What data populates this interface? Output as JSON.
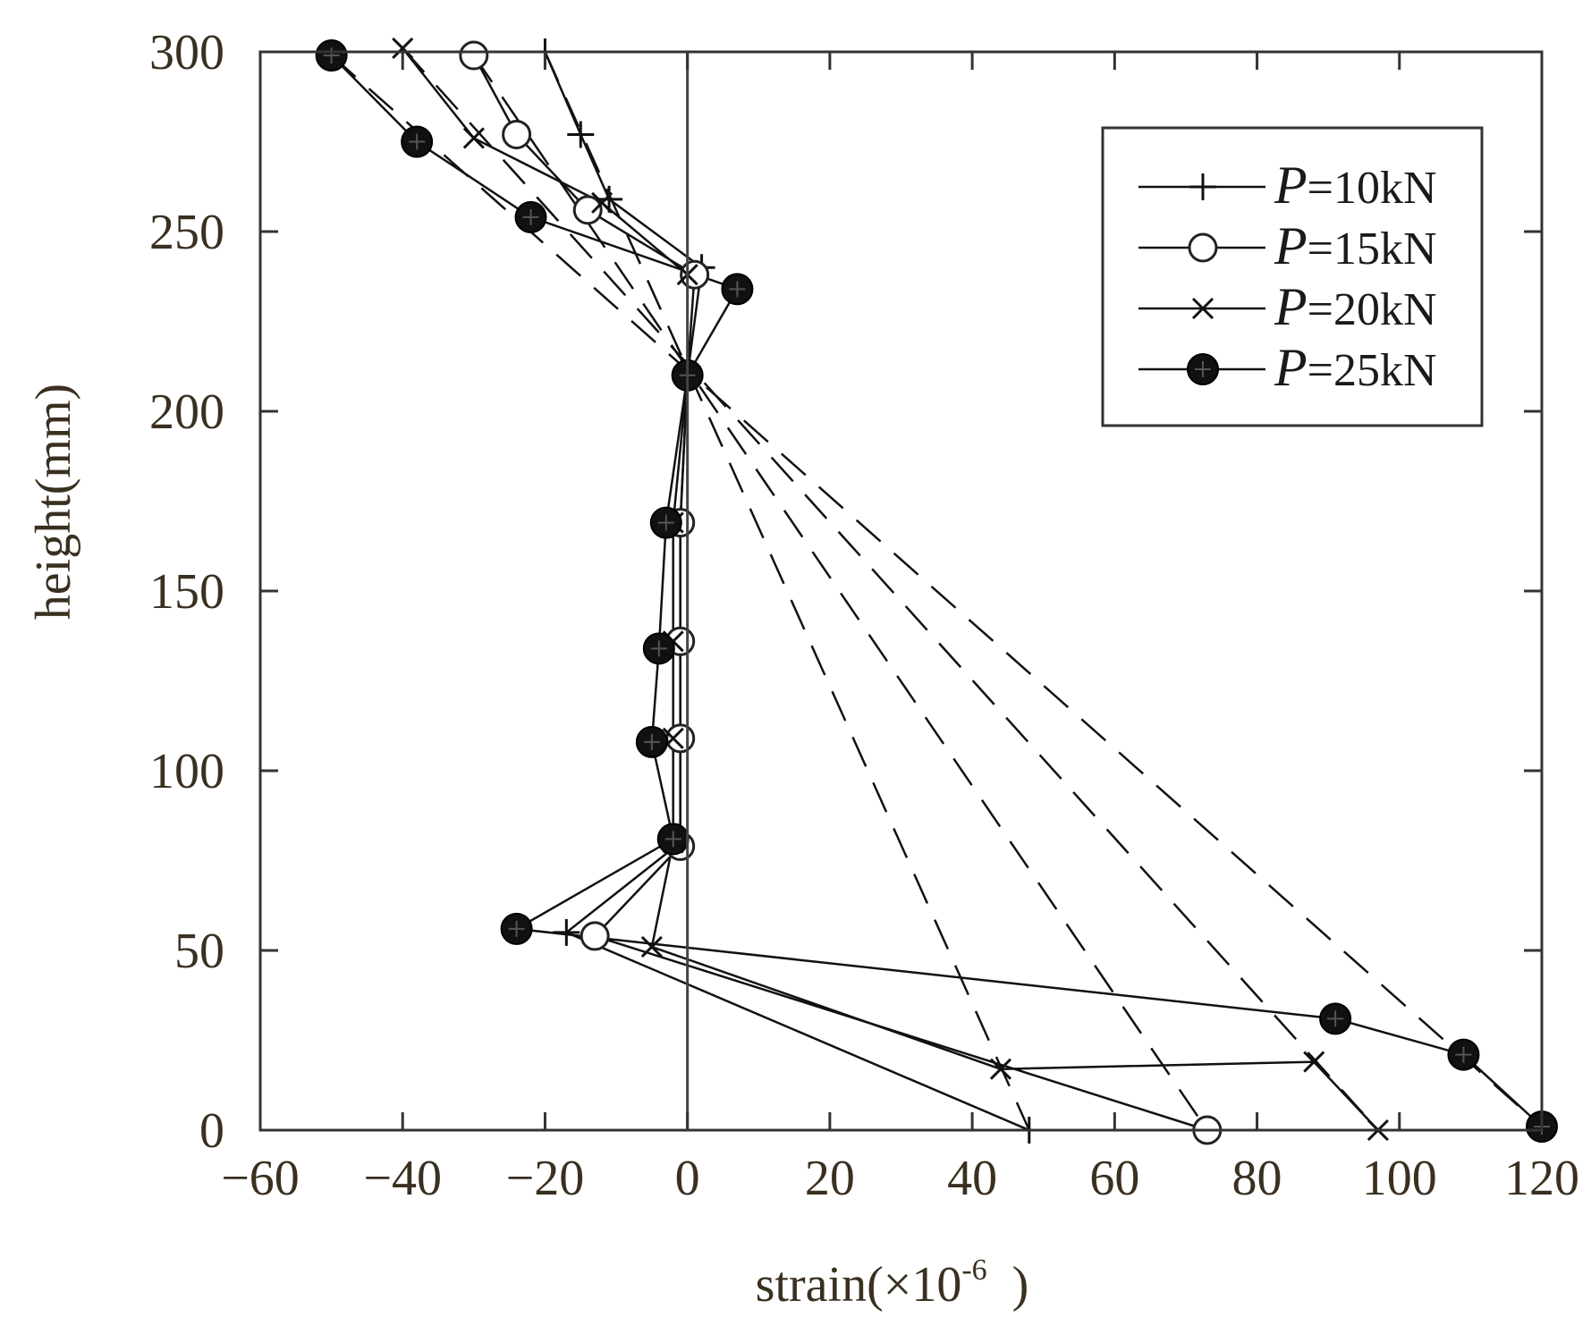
{
  "chart_data": {
    "type": "line",
    "title": "",
    "xlabel": "strain(×10",
    "xlabel_exponent": "-6",
    "xlabel_suffix": " )",
    "ylabel": "height(mm)",
    "xlim": [
      -60,
      120
    ],
    "ylim": [
      0,
      300
    ],
    "xticks": [
      -60,
      -40,
      -20,
      0,
      20,
      40,
      60,
      80,
      100,
      120
    ],
    "yticks": [
      0,
      50,
      100,
      150,
      200,
      250,
      300
    ],
    "grid": false,
    "zero_line_x": 0,
    "legend_position": "top-right",
    "series": [
      {
        "name": "P=10kN",
        "p": "P",
        "label": "=10kN",
        "marker": "plus",
        "points": [
          [
            -20,
            300
          ],
          [
            -15,
            277
          ],
          [
            -11,
            259
          ],
          [
            2,
            240
          ],
          [
            0,
            210
          ],
          [
            -1,
            169
          ],
          [
            -1,
            136
          ],
          [
            -1,
            109
          ],
          [
            -1,
            80
          ],
          [
            -17,
            55
          ],
          [
            48,
            0
          ]
        ],
        "dashed": [
          [
            -20,
            300
          ],
          [
            48,
            0
          ]
        ]
      },
      {
        "name": "P=15kN",
        "p": "P",
        "label": "=15kN",
        "marker": "circle",
        "points": [
          [
            -30,
            299
          ],
          [
            -24,
            277
          ],
          [
            -14,
            256
          ],
          [
            1,
            238
          ],
          [
            0,
            210
          ],
          [
            -1,
            169
          ],
          [
            -1,
            136
          ],
          [
            -1,
            109
          ],
          [
            -1,
            79
          ],
          [
            -13,
            54
          ],
          [
            73,
            0
          ]
        ],
        "dashed": [
          [
            -30,
            299
          ],
          [
            73,
            0
          ]
        ]
      },
      {
        "name": "P=20kN",
        "p": "P",
        "label": "=20kN",
        "marker": "x",
        "points": [
          [
            -40,
            301
          ],
          [
            -30,
            276
          ],
          [
            -12,
            258
          ],
          [
            0,
            238
          ],
          [
            0,
            210
          ],
          [
            -2,
            169
          ],
          [
            -2,
            136
          ],
          [
            -2,
            109
          ],
          [
            -2,
            80
          ],
          [
            -5,
            51
          ],
          [
            44,
            17
          ],
          [
            88,
            19
          ],
          [
            97,
            0
          ]
        ],
        "dashed": [
          [
            -40,
            301
          ],
          [
            97,
            0
          ]
        ]
      },
      {
        "name": "P=25kN",
        "p": "P",
        "label": "=25kN",
        "marker": "filled-circle",
        "points": [
          [
            -50,
            299
          ],
          [
            -38,
            275
          ],
          [
            -22,
            254
          ],
          [
            7,
            234
          ],
          [
            0,
            210
          ],
          [
            -3,
            169
          ],
          [
            -4,
            134
          ],
          [
            -5,
            108
          ],
          [
            -2,
            81
          ],
          [
            -24,
            56
          ],
          [
            91,
            31
          ],
          [
            109,
            21
          ],
          [
            120,
            1
          ]
        ],
        "dashed": [
          [
            -50,
            299
          ],
          [
            120,
            1
          ]
        ]
      }
    ]
  }
}
